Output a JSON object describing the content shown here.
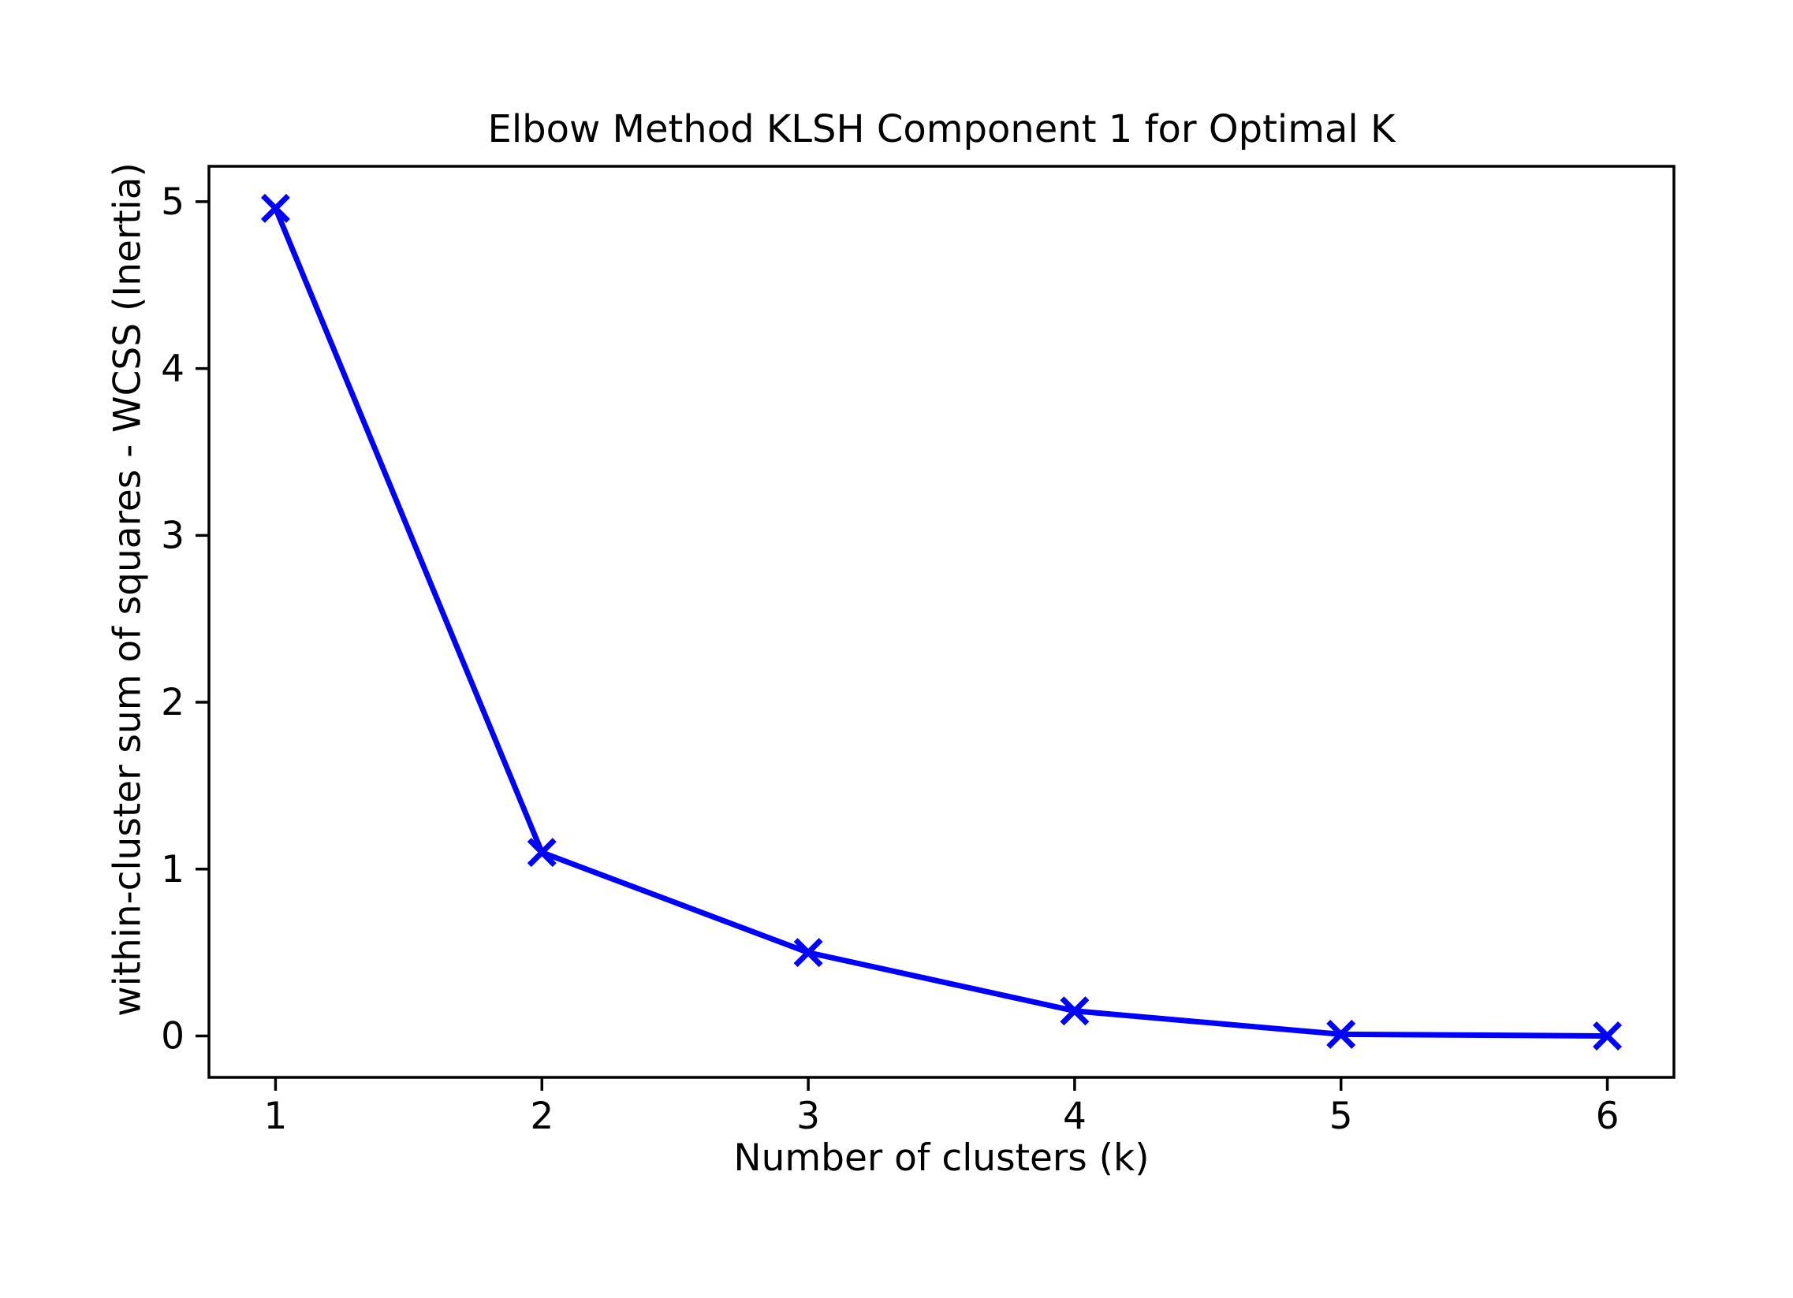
{
  "colors": {
    "line": "#0000ff",
    "text": "#000000",
    "spine": "#000000",
    "background": "#ffffff"
  },
  "chart_data": {
    "type": "line",
    "title": "Elbow Method KLSH Component 1 for Optimal K",
    "xlabel": "Number of clusters (k)",
    "ylabel": "within-cluster sum of squares - WCSS (Inertia)",
    "x": [
      1,
      2,
      3,
      4,
      5,
      6
    ],
    "series": [
      {
        "name": "WCSS",
        "values": [
          4.96,
          1.1,
          0.5,
          0.15,
          0.01,
          0.0
        ],
        "color": "#0000ff",
        "marker": "x",
        "line_width": 7,
        "marker_size": 16
      }
    ],
    "xlim": [
      0.75,
      6.25
    ],
    "ylim": [
      -0.248,
      5.212
    ],
    "xticks": [
      "1",
      "2",
      "3",
      "4",
      "5",
      "6"
    ],
    "xtick_values": [
      1,
      2,
      3,
      4,
      5,
      6
    ],
    "yticks": [
      "0",
      "1",
      "2",
      "3",
      "4",
      "5"
    ],
    "ytick_values": [
      0,
      1,
      2,
      3,
      4,
      5
    ],
    "grid": false,
    "legend": null,
    "tick_font_size": 47
  }
}
